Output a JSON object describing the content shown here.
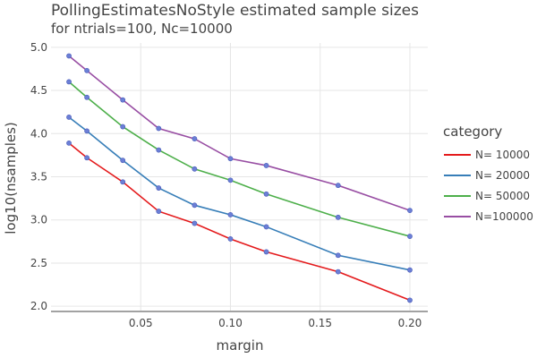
{
  "chart_data": {
    "type": "line",
    "title": "PollingEstimatesNoStyle estimated sample sizes",
    "subtitle": "for ntrials=100, Nc=10000",
    "xlabel": "margin",
    "ylabel": "log10(nsamples)",
    "xlim": [
      0.0,
      0.21
    ],
    "ylim": [
      1.95,
      5.05
    ],
    "x_ticks": [
      0.05,
      0.1,
      0.15,
      0.2
    ],
    "x_tick_labels": [
      "0.05",
      "0.10",
      "0.15",
      "0.20"
    ],
    "y_ticks": [
      2.0,
      2.5,
      3.0,
      3.5,
      4.0,
      4.5,
      5.0
    ],
    "y_tick_labels": [
      "2.0",
      "2.5",
      "3.0",
      "3.5",
      "4.0",
      "4.5",
      "5.0"
    ],
    "grid": true,
    "legend_title": "category",
    "legend_position": "right",
    "x": [
      0.01,
      0.02,
      0.04,
      0.06,
      0.08,
      0.1,
      0.12,
      0.16,
      0.2
    ],
    "series": [
      {
        "name": "N= 10000",
        "color": "#e41a1c",
        "values": [
          3.89,
          3.72,
          3.44,
          3.1,
          2.96,
          2.78,
          2.63,
          2.4,
          2.07
        ]
      },
      {
        "name": "N= 20000",
        "color": "#377eb8",
        "values": [
          4.19,
          4.03,
          3.69,
          3.37,
          3.17,
          3.06,
          2.92,
          2.59,
          2.42
        ]
      },
      {
        "name": "N= 50000",
        "color": "#4daf4a",
        "values": [
          4.6,
          4.42,
          4.08,
          3.81,
          3.59,
          3.46,
          3.3,
          3.03,
          2.81
        ]
      },
      {
        "name": "N=100000",
        "color": "#984ea3",
        "values": [
          4.9,
          4.73,
          4.39,
          4.06,
          3.94,
          3.71,
          3.63,
          3.4,
          3.11
        ]
      }
    ],
    "marker_color": "#6b7fd6"
  }
}
